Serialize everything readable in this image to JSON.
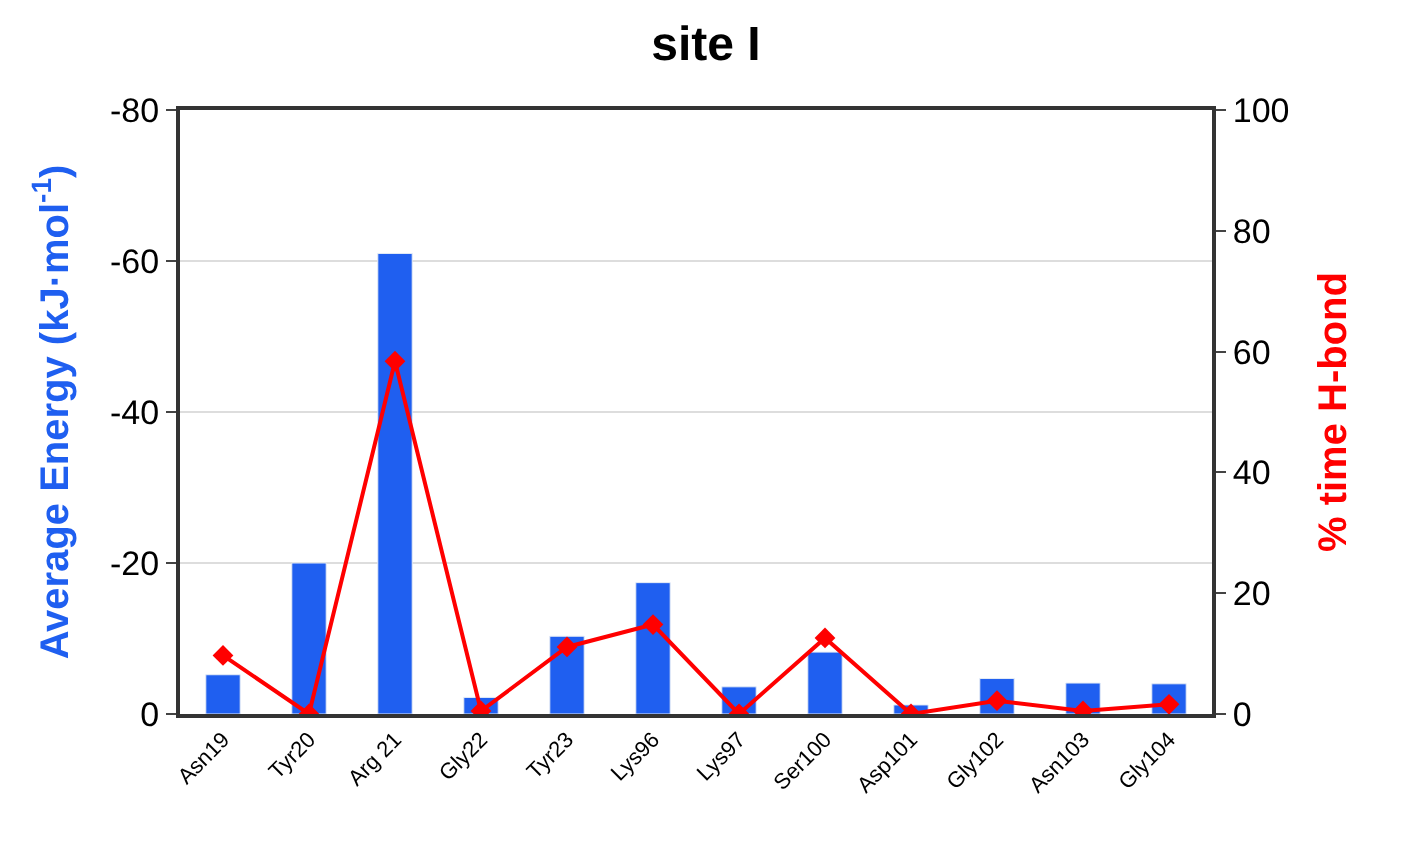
{
  "chart_data": {
    "type": "bar",
    "title": "site I",
    "ylabel": "Average Energy (kJ·mol$^{-1}$)",
    "y2label": "% time H-bond",
    "categories": [
      "Asn19",
      "Tyr20",
      "Arg 21",
      "Gly22",
      "Tyr23",
      "Lys96",
      "Lys97",
      "Ser100",
      "Asp101",
      "Gly102",
      "Asn103",
      "Gly104"
    ],
    "series": [
      {
        "color": "#1f5ff0",
        "values": [
          -5.2,
          -20,
          -61,
          -2.2,
          -10.3,
          -17.4,
          -3.6,
          -8.2,
          -1.2,
          -4.7,
          -4.1,
          -4.0
        ]
      },
      {
        "type": "line",
        "axis": "y2",
        "color": "#ff0000",
        "marker": "diamond",
        "values": [
          9.7,
          0,
          58.4,
          0.5,
          11.1,
          14.8,
          0,
          12.6,
          0,
          2.2,
          0.5,
          1.6
        ]
      }
    ],
    "ylim": [
      0,
      -80
    ],
    "yticks": [
      -80,
      -60,
      -40,
      -20,
      0
    ],
    "y2lim": [
      0,
      100
    ],
    "y2ticks": [
      0,
      20,
      40,
      60,
      80,
      100
    ],
    "grid": "y"
  }
}
